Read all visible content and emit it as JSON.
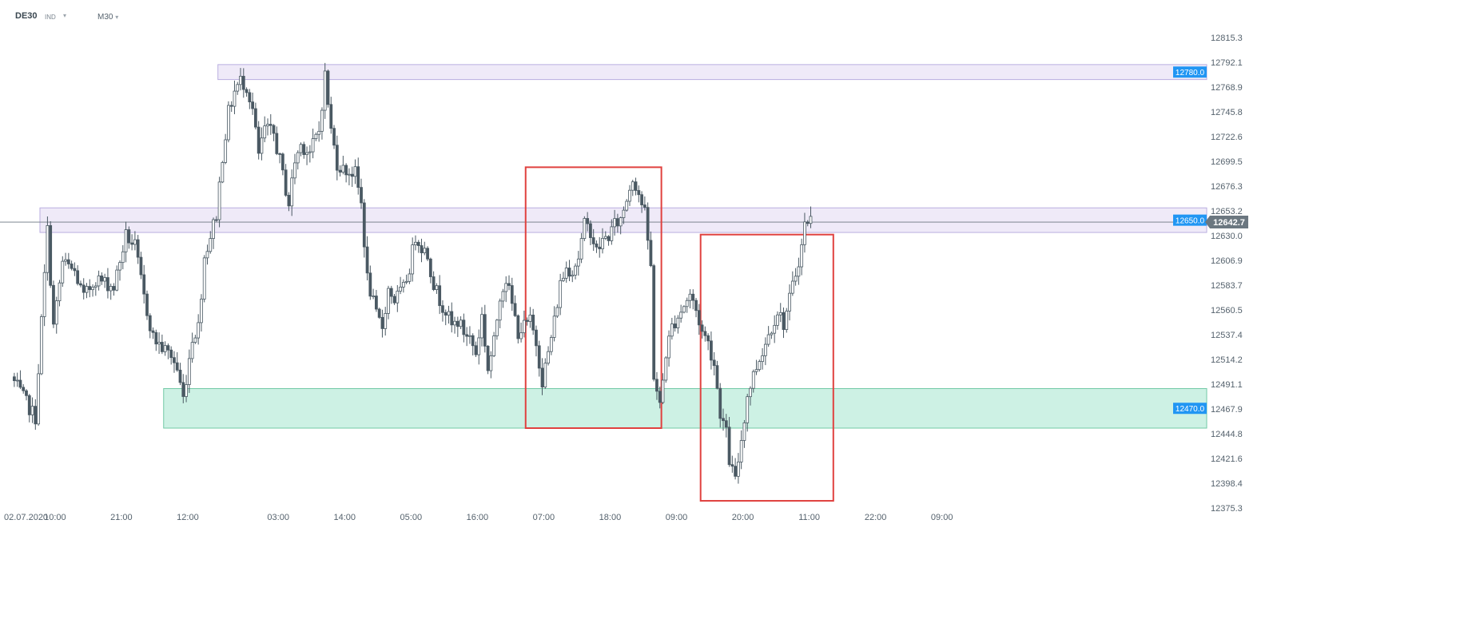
{
  "header": {
    "symbol": "DE30",
    "instrument_type": "IND",
    "dropdown_icon": "▾",
    "timeframe": "M30"
  },
  "colors": {
    "bull_fill": "#ffffff",
    "bear_fill": "#4a5963",
    "candle_line": "#4a5963",
    "resistance_zone": "#efeaf8",
    "resistance_border": "#b9aee0",
    "support_zone": "#cdf1e4",
    "support_border": "#72c9a6",
    "box": "#e0413f",
    "tag_blue": "#2196f3",
    "price_tag": "#6b7780"
  },
  "chart_data": {
    "type": "candlestick",
    "title": "",
    "xlabel": "",
    "ylabel": "",
    "ylim": [
      12375.3,
      12815.3
    ],
    "y_ticks": [
      "12815.3",
      "12792.1",
      "12768.9",
      "12745.8",
      "12722.6",
      "12699.5",
      "12676.3",
      "12653.2",
      "12630.0",
      "12606.9",
      "12583.7",
      "12560.5",
      "12537.4",
      "12514.2",
      "12491.1",
      "12467.9",
      "12444.8",
      "12421.6",
      "12398.4",
      "12375.3"
    ],
    "x_ticks": [
      {
        "bar": 0,
        "label": "02.07.2020"
      },
      {
        "bar": 14,
        "label": "10:00"
      },
      {
        "bar": 36,
        "label": "21:00"
      },
      {
        "bar": 58,
        "label": "12:00"
      },
      {
        "bar": 88,
        "label": "03:00"
      },
      {
        "bar": 110,
        "label": "14:00"
      },
      {
        "bar": 132,
        "label": "05:00"
      },
      {
        "bar": 154,
        "label": "16:00"
      },
      {
        "bar": 176,
        "label": "07:00"
      },
      {
        "bar": 198,
        "label": "18:00"
      },
      {
        "bar": 220,
        "label": "09:00"
      },
      {
        "bar": 242,
        "label": "20:00"
      },
      {
        "bar": 264,
        "label": "11:00"
      },
      {
        "bar": 286,
        "label": "22:00"
      },
      {
        "bar": 308,
        "label": "09:00"
      }
    ],
    "last_price": 12642.7,
    "last_price_label": "12642.7",
    "levels": [
      {
        "name": "resistance-upper",
        "low": 12776,
        "high": 12790,
        "label": "12780.0",
        "from_bar": 68
      },
      {
        "name": "resistance-middle",
        "low": 12633,
        "high": 12656,
        "label": "12650.0",
        "from_bar": 9
      },
      {
        "name": "support-zone",
        "low": 12450,
        "high": 12487,
        "label": "12470.0",
        "from_bar": 50
      }
    ],
    "boxes": [
      {
        "from_bar": 170,
        "to_bar": 215,
        "high": 12694,
        "low": 12450
      },
      {
        "from_bar": 228,
        "to_bar": 272,
        "high": 12631,
        "low": 12382
      }
    ],
    "waypoints": [
      [
        0,
        12498
      ],
      [
        4,
        12478
      ],
      [
        8,
        12460
      ],
      [
        10,
        12550
      ],
      [
        12,
        12635
      ],
      [
        14,
        12545
      ],
      [
        17,
        12605
      ],
      [
        21,
        12596
      ],
      [
        24,
        12572
      ],
      [
        28,
        12590
      ],
      [
        34,
        12582
      ],
      [
        38,
        12630
      ],
      [
        41,
        12620
      ],
      [
        44,
        12572
      ],
      [
        47,
        12535
      ],
      [
        50,
        12525
      ],
      [
        53,
        12518
      ],
      [
        55,
        12505
      ],
      [
        57,
        12478
      ],
      [
        60,
        12535
      ],
      [
        62,
        12545
      ],
      [
        64,
        12610
      ],
      [
        66,
        12630
      ],
      [
        68,
        12650
      ],
      [
        70,
        12705
      ],
      [
        72,
        12745
      ],
      [
        74,
        12765
      ],
      [
        76,
        12775
      ],
      [
        78,
        12770
      ],
      [
        80,
        12748
      ],
      [
        82,
        12705
      ],
      [
        84,
        12730
      ],
      [
        87,
        12725
      ],
      [
        89,
        12700
      ],
      [
        92,
        12660
      ],
      [
        94,
        12700
      ],
      [
        96,
        12715
      ],
      [
        99,
        12708
      ],
      [
        102,
        12728
      ],
      [
        104,
        12780
      ],
      [
        106,
        12728
      ],
      [
        108,
        12698
      ],
      [
        110,
        12692
      ],
      [
        112,
        12690
      ],
      [
        114,
        12688
      ],
      [
        116,
        12660
      ],
      [
        118,
        12590
      ],
      [
        121,
        12555
      ],
      [
        123,
        12545
      ],
      [
        125,
        12580
      ],
      [
        127,
        12570
      ],
      [
        130,
        12580
      ],
      [
        132,
        12600
      ],
      [
        134,
        12630
      ],
      [
        136,
        12620
      ],
      [
        138,
        12612
      ],
      [
        140,
        12585
      ],
      [
        142,
        12570
      ],
      [
        144,
        12560
      ],
      [
        146,
        12545
      ],
      [
        148,
        12550
      ],
      [
        150,
        12540
      ],
      [
        152,
        12535
      ],
      [
        154,
        12520
      ],
      [
        156,
        12555
      ],
      [
        158,
        12505
      ],
      [
        160,
        12530
      ],
      [
        162,
        12575
      ],
      [
        164,
        12590
      ],
      [
        166,
        12565
      ],
      [
        168,
        12540
      ],
      [
        170,
        12545
      ],
      [
        172,
        12550
      ],
      [
        174,
        12530
      ],
      [
        176,
        12495
      ],
      [
        178,
        12520
      ],
      [
        180,
        12550
      ],
      [
        182,
        12585
      ],
      [
        184,
        12600
      ],
      [
        186,
        12598
      ],
      [
        188,
        12610
      ],
      [
        190,
        12640
      ],
      [
        192,
        12635
      ],
      [
        194,
        12615
      ],
      [
        196,
        12625
      ],
      [
        198,
        12630
      ],
      [
        200,
        12640
      ],
      [
        202,
        12645
      ],
      [
        204,
        12665
      ],
      [
        206,
        12685
      ],
      [
        208,
        12670
      ],
      [
        210,
        12650
      ],
      [
        212,
        12600
      ],
      [
        213,
        12500
      ],
      [
        215,
        12470
      ],
      [
        217,
        12520
      ],
      [
        219,
        12545
      ],
      [
        221,
        12555
      ],
      [
        223,
        12565
      ],
      [
        225,
        12575
      ],
      [
        227,
        12560
      ],
      [
        229,
        12540
      ],
      [
        231,
        12530
      ],
      [
        233,
        12510
      ],
      [
        235,
        12465
      ],
      [
        237,
        12445
      ],
      [
        238,
        12420
      ],
      [
        240,
        12400
      ],
      [
        242,
        12440
      ],
      [
        244,
        12480
      ],
      [
        246,
        12500
      ],
      [
        248,
        12515
      ],
      [
        250,
        12530
      ],
      [
        252,
        12545
      ],
      [
        254,
        12560
      ],
      [
        256,
        12548
      ],
      [
        258,
        12570
      ],
      [
        260,
        12595
      ],
      [
        262,
        12620
      ],
      [
        263,
        12640
      ],
      [
        264,
        12645
      ]
    ]
  }
}
